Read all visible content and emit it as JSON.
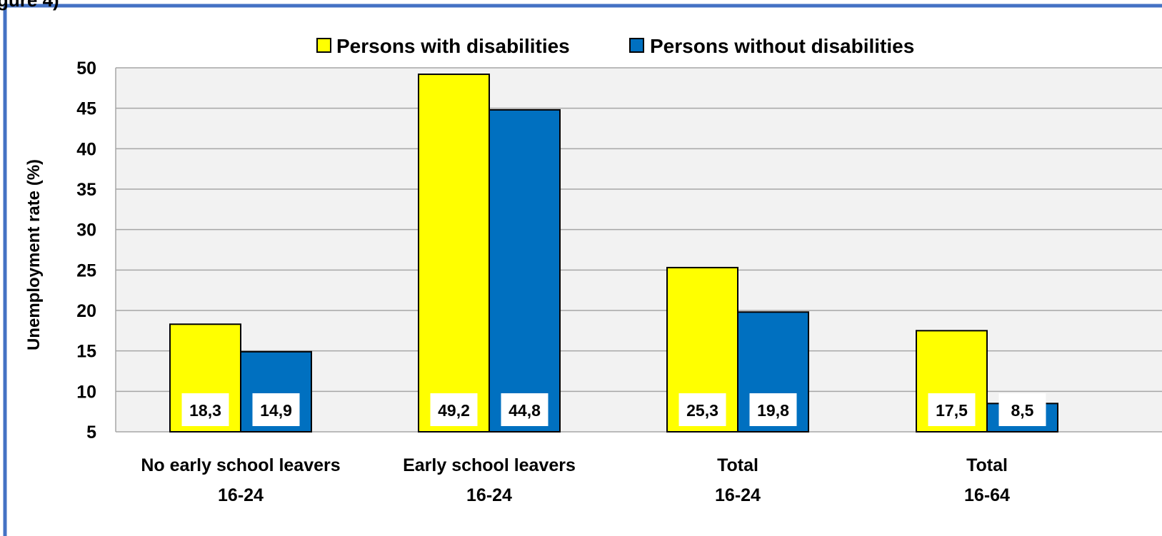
{
  "chart_data": {
    "type": "bar",
    "title_fragment": "gure 4)",
    "ylabel": "Unemployment rate (%)",
    "ylim": [
      5,
      50
    ],
    "yticks": [
      5,
      10,
      15,
      20,
      25,
      30,
      35,
      40,
      45,
      50
    ],
    "grid": true,
    "legend_position": "top",
    "categories": [
      {
        "line1": "No early school leavers",
        "line2": "16-24"
      },
      {
        "line1": "Early school leavers",
        "line2": "16-24"
      },
      {
        "line1": "Total",
        "line2": "16-24"
      },
      {
        "line1": "Total",
        "line2": "16-64"
      }
    ],
    "series": [
      {
        "name": "Persons with disabilities",
        "color": "#FFFF00",
        "values": [
          18.3,
          49.2,
          25.3,
          17.5
        ],
        "labels": [
          "18,3",
          "49,2",
          "25,3",
          "17,5"
        ]
      },
      {
        "name": "Persons without disabilities",
        "color": "#0070C0",
        "values": [
          14.9,
          44.8,
          19.8,
          8.5
        ],
        "labels": [
          "14,9",
          "44,8",
          "19,8",
          "8,5"
        ]
      }
    ]
  }
}
